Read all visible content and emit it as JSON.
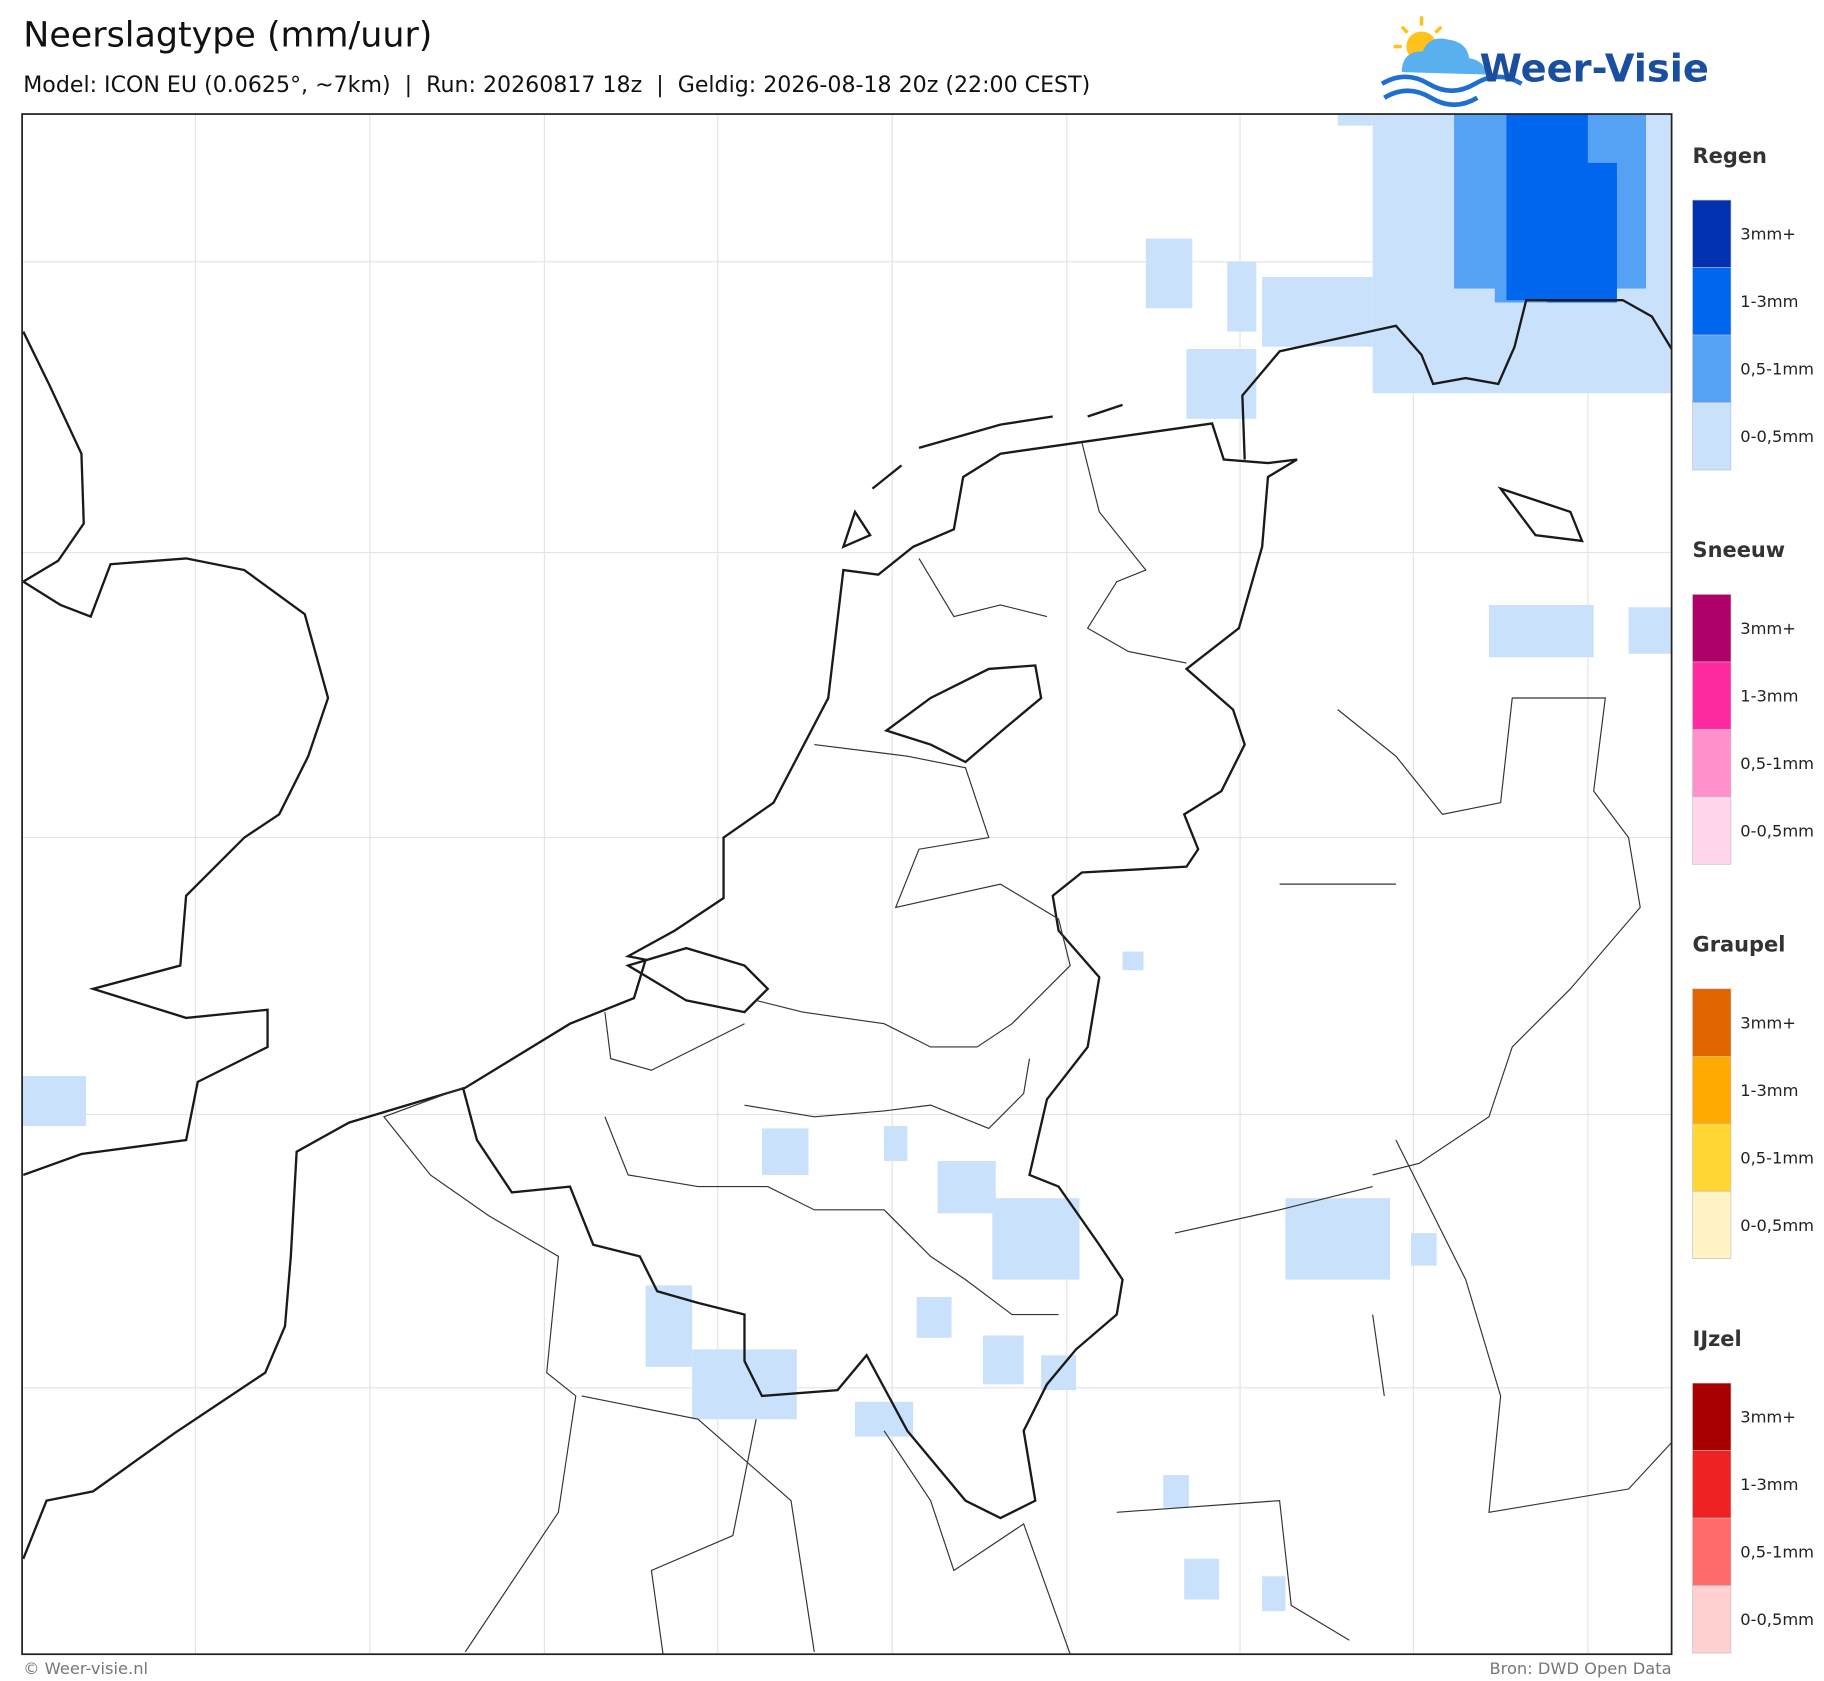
{
  "header": {
    "title": "Neerslagtype (mm/uur)",
    "subtitle": "Model: ICON EU (0.0625°, ~7km)  |  Run: 20260817 18z  |  Geldig: 2026-08-18 20z (22:00 CEST)"
  },
  "logo": {
    "text": "Weer-Visie"
  },
  "legend": [
    {
      "name": "Regen",
      "items": [
        {
          "label": "3mm+",
          "color": "#0032b0"
        },
        {
          "label": "1-3mm",
          "color": "#0066ee"
        },
        {
          "label": "0,5-1mm",
          "color": "#55a2f5"
        },
        {
          "label": "0-0,5mm",
          "color": "#c9e1fb"
        }
      ]
    },
    {
      "name": "Sneeuw",
      "items": [
        {
          "label": "3mm+",
          "color": "#b0006a"
        },
        {
          "label": "1-3mm",
          "color": "#ff2aa2"
        },
        {
          "label": "0,5-1mm",
          "color": "#ff90cc"
        },
        {
          "label": "0-0,5mm",
          "color": "#ffd6ec"
        }
      ]
    },
    {
      "name": "Graupel",
      "items": [
        {
          "label": "3mm+",
          "color": "#e06400"
        },
        {
          "label": "1-3mm",
          "color": "#ffaa00"
        },
        {
          "label": "0,5-1mm",
          "color": "#ffd633"
        },
        {
          "label": "0-0,5mm",
          "color": "#fff2c4"
        }
      ]
    },
    {
      "name": "IJzel",
      "items": [
        {
          "label": "3mm+",
          "color": "#a80000"
        },
        {
          "label": "1-3mm",
          "color": "#ee2222"
        },
        {
          "label": "0,5-1mm",
          "color": "#ff6b6b"
        },
        {
          "label": "0-0,5mm",
          "color": "#ffd0d0"
        }
      ]
    }
  ],
  "footer": {
    "left": "© Weer-visie.nl",
    "right": "Bron: DWD Open Data"
  }
}
